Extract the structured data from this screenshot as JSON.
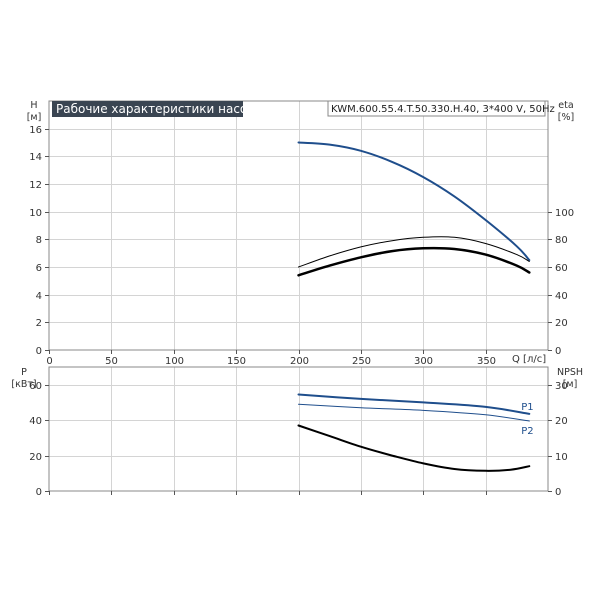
{
  "chart_data": [
    {
      "type": "line",
      "title": "Рабочие характеристики насоса",
      "subtitle": "KWM.600.55.4.T.50.330.H.40, 3*400 V, 50Hz",
      "xlabel": "Q [л/с]",
      "xlim": [
        0,
        400
      ],
      "x_ticks": [
        0,
        50,
        100,
        150,
        200,
        250,
        300,
        350
      ],
      "left_axis": {
        "name": "H",
        "unit": "[м]",
        "ylim": [
          0,
          18
        ],
        "ticks": [
          0,
          2,
          4,
          6,
          8,
          10,
          12,
          14,
          16
        ]
      },
      "right_axis": {
        "name": "eta",
        "unit": "[%]",
        "ylim": [
          0,
          180
        ],
        "ticks": [
          0,
          20,
          40,
          60,
          80,
          100
        ]
      },
      "grid": true,
      "series": [
        {
          "axis": "left",
          "color": "#1f4e8c",
          "width": 2,
          "x": [
            200,
            225,
            250,
            275,
            300,
            325,
            350,
            375,
            385
          ],
          "values": [
            15.0,
            14.85,
            14.4,
            13.6,
            12.5,
            11.1,
            9.4,
            7.5,
            6.5
          ]
        },
        {
          "axis": "right",
          "color": "#000000",
          "width": 1,
          "x": [
            200,
            225,
            250,
            275,
            300,
            325,
            350,
            375,
            385
          ],
          "values": [
            60,
            68,
            74.5,
            79,
            81.5,
            81.5,
            77,
            69,
            64
          ]
        },
        {
          "axis": "right",
          "color": "#000000",
          "width": 2.5,
          "x": [
            200,
            225,
            250,
            275,
            300,
            325,
            350,
            375,
            385
          ],
          "values": [
            54,
            61,
            67,
            71.5,
            73.5,
            73,
            69,
            61,
            56
          ]
        }
      ]
    },
    {
      "type": "line",
      "xlim": [
        0,
        400
      ],
      "x_ticks": [
        0,
        50,
        100,
        150,
        200,
        250,
        300,
        350
      ],
      "left_axis": {
        "name": "P",
        "unit": "[кВт]",
        "ylim": [
          0,
          70
        ],
        "ticks": [
          0,
          20,
          40,
          60
        ]
      },
      "right_axis": {
        "name": "NPSH",
        "unit": "[м]",
        "ylim": [
          0,
          35
        ],
        "ticks": [
          0,
          10,
          20,
          30
        ]
      },
      "grid": true,
      "series": [
        {
          "name": "P1",
          "axis": "left",
          "color": "#1f4e8c",
          "width": 2,
          "x": [
            200,
            250,
            300,
            350,
            385
          ],
          "values": [
            54.5,
            52,
            50,
            47.5,
            43.5
          ]
        },
        {
          "name": "P2",
          "axis": "left",
          "color": "#1f4e8c",
          "width": 1,
          "x": [
            200,
            250,
            300,
            350,
            385
          ],
          "values": [
            49,
            47,
            45.5,
            43,
            39.5
          ]
        },
        {
          "axis": "right",
          "color": "#000000",
          "width": 2,
          "x": [
            200,
            225,
            250,
            275,
            300,
            325,
            350,
            370,
            385
          ],
          "values": [
            18.5,
            15.5,
            12.5,
            10,
            7.8,
            6.2,
            5.7,
            6,
            7
          ]
        }
      ]
    }
  ]
}
